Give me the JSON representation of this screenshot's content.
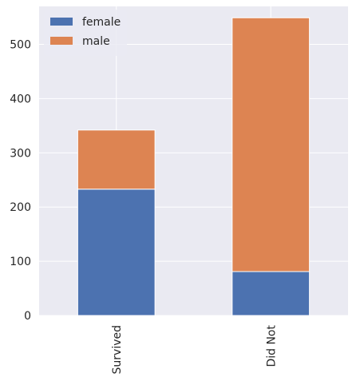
{
  "chart_data": {
    "type": "bar",
    "stacked": true,
    "categories": [
      "Survived",
      "Did Not"
    ],
    "series": [
      {
        "name": "female",
        "values": [
          233,
          81
        ],
        "color": "#4c72b0"
      },
      {
        "name": "male",
        "values": [
          109,
          468
        ],
        "color": "#dd8452"
      }
    ],
    "ylim": [
      0,
      570
    ],
    "yticks": [
      0,
      100,
      200,
      300,
      400,
      500
    ],
    "grid": true,
    "legend_position": "top-left",
    "background_color": "#eaeaf2",
    "grid_color": "#ffffff"
  }
}
